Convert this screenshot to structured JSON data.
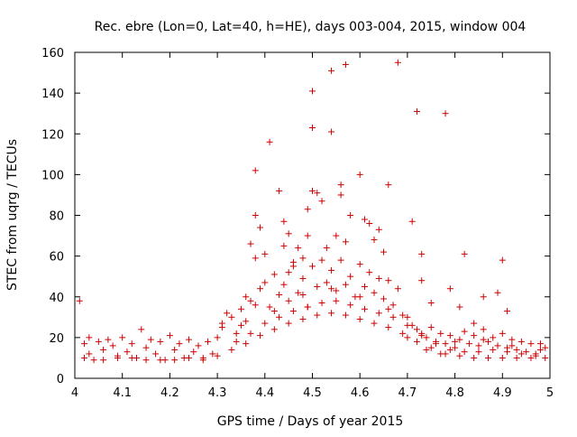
{
  "chart_data": {
    "type": "scatter",
    "title": "Rec. ebre (Lon=0, Lat=40, h=HE), days 003-004, 2015, window 004",
    "xlabel": "GPS time / Days of year 2015",
    "ylabel": "STEC from uqrg / TECUs",
    "xlim": [
      4.0,
      5.0
    ],
    "ylim": [
      0,
      160
    ],
    "x_ticks": [
      4,
      4.1,
      4.2,
      4.3,
      4.4,
      4.5,
      4.6,
      4.7,
      4.8,
      4.9,
      5
    ],
    "x_tick_labels": [
      "4",
      "4.1",
      "4.2",
      "4.3",
      "4.4",
      "4.5",
      "4.6",
      "4.7",
      "4.8",
      "4.9",
      "5"
    ],
    "y_ticks": [
      0,
      20,
      40,
      60,
      80,
      100,
      120,
      140,
      160
    ],
    "y_tick_labels": [
      "0",
      "20",
      "40",
      "60",
      "80",
      "100",
      "120",
      "140",
      "160"
    ],
    "grid": false,
    "marker": "+",
    "marker_color": "#cc0000",
    "series": [
      {
        "name": "STEC",
        "points": [
          [
            4.01,
            38
          ],
          [
            4.38,
            102
          ],
          [
            4.41,
            116
          ],
          [
            4.43,
            92
          ],
          [
            4.38,
            80
          ],
          [
            4.39,
            74
          ],
          [
            4.37,
            66
          ],
          [
            4.4,
            61
          ],
          [
            4.38,
            59
          ],
          [
            4.44,
            77
          ],
          [
            4.45,
            71
          ],
          [
            4.44,
            65
          ],
          [
            4.47,
            64
          ],
          [
            4.46,
            57
          ],
          [
            4.48,
            59
          ],
          [
            4.45,
            52
          ],
          [
            4.49,
            83
          ],
          [
            4.49,
            70
          ],
          [
            4.5,
            92
          ],
          [
            4.51,
            91
          ],
          [
            4.5,
            141
          ],
          [
            4.5,
            123
          ],
          [
            4.52,
            87
          ],
          [
            4.54,
            151
          ],
          [
            4.54,
            121
          ],
          [
            4.57,
            154
          ],
          [
            4.56,
            95
          ],
          [
            4.56,
            90
          ],
          [
            4.58,
            80
          ],
          [
            4.55,
            70
          ],
          [
            4.57,
            67
          ],
          [
            4.53,
            64
          ],
          [
            4.6,
            100
          ],
          [
            4.61,
            78
          ],
          [
            4.62,
            76
          ],
          [
            4.64,
            73
          ],
          [
            4.63,
            68
          ],
          [
            4.65,
            62
          ],
          [
            4.66,
            95
          ],
          [
            4.68,
            155
          ],
          [
            4.71,
            77
          ],
          [
            4.72,
            131
          ],
          [
            4.73,
            61
          ],
          [
            4.78,
            130
          ],
          [
            4.82,
            61
          ],
          [
            4.79,
            44
          ],
          [
            4.73,
            48
          ],
          [
            4.89,
            42
          ],
          [
            4.9,
            58
          ],
          [
            4.86,
            40
          ],
          [
            4.91,
            33
          ],
          [
            4.75,
            37
          ],
          [
            4.81,
            35
          ],
          [
            4.84,
            27
          ],
          [
            4.02,
            17
          ],
          [
            4.03,
            20
          ],
          [
            4.02,
            10
          ],
          [
            4.05,
            18
          ],
          [
            4.06,
            14
          ],
          [
            4.07,
            19
          ],
          [
            4.04,
            9
          ],
          [
            4.08,
            16
          ],
          [
            4.09,
            11
          ],
          [
            4.1,
            20
          ],
          [
            4.11,
            13
          ],
          [
            4.12,
            17
          ],
          [
            4.13,
            10
          ],
          [
            4.14,
            24
          ],
          [
            4.15,
            15
          ],
          [
            4.16,
            19
          ],
          [
            4.17,
            12
          ],
          [
            4.18,
            18
          ],
          [
            4.19,
            9
          ],
          [
            4.2,
            21
          ],
          [
            4.21,
            14
          ],
          [
            4.22,
            17
          ],
          [
            4.23,
            10
          ],
          [
            4.24,
            19
          ],
          [
            4.25,
            13
          ],
          [
            4.26,
            16
          ],
          [
            4.27,
            9
          ],
          [
            4.28,
            18
          ],
          [
            4.29,
            12
          ],
          [
            4.3,
            20
          ],
          [
            4.31,
            25
          ],
          [
            4.32,
            32
          ],
          [
            4.31,
            27
          ],
          [
            4.33,
            30
          ],
          [
            4.34,
            22
          ],
          [
            4.35,
            34
          ],
          [
            4.36,
            40
          ],
          [
            4.37,
            38
          ],
          [
            4.36,
            28
          ],
          [
            4.38,
            36
          ],
          [
            4.39,
            44
          ],
          [
            4.4,
            47
          ],
          [
            4.41,
            35
          ],
          [
            4.42,
            51
          ],
          [
            4.43,
            41
          ],
          [
            4.44,
            46
          ],
          [
            4.45,
            38
          ],
          [
            4.46,
            55
          ],
          [
            4.47,
            42
          ],
          [
            4.48,
            49
          ],
          [
            4.49,
            35
          ],
          [
            4.5,
            55
          ],
          [
            4.51,
            45
          ],
          [
            4.52,
            58
          ],
          [
            4.53,
            47
          ],
          [
            4.54,
            53
          ],
          [
            4.55,
            43
          ],
          [
            4.56,
            58
          ],
          [
            4.57,
            46
          ],
          [
            4.58,
            50
          ],
          [
            4.59,
            40
          ],
          [
            4.6,
            56
          ],
          [
            4.61,
            45
          ],
          [
            4.62,
            52
          ],
          [
            4.63,
            42
          ],
          [
            4.64,
            49
          ],
          [
            4.65,
            39
          ],
          [
            4.66,
            48
          ],
          [
            4.67,
            36
          ],
          [
            4.68,
            44
          ],
          [
            4.69,
            31
          ],
          [
            4.7,
            30
          ],
          [
            4.71,
            26
          ],
          [
            4.72,
            24
          ],
          [
            4.73,
            22
          ],
          [
            4.74,
            20
          ],
          [
            4.75,
            25
          ],
          [
            4.76,
            18
          ],
          [
            4.77,
            22
          ],
          [
            4.78,
            17
          ],
          [
            4.79,
            21
          ],
          [
            4.8,
            15
          ],
          [
            4.81,
            19
          ],
          [
            4.82,
            23
          ],
          [
            4.83,
            17
          ],
          [
            4.84,
            21
          ],
          [
            4.85,
            16
          ],
          [
            4.86,
            24
          ],
          [
            4.87,
            18
          ],
          [
            4.88,
            20
          ],
          [
            4.89,
            16
          ],
          [
            4.9,
            22
          ],
          [
            4.91,
            15
          ],
          [
            4.92,
            19
          ],
          [
            4.93,
            14
          ],
          [
            4.94,
            18
          ],
          [
            4.95,
            13
          ],
          [
            4.96,
            17
          ],
          [
            4.97,
            12
          ],
          [
            4.98,
            17
          ],
          [
            4.99,
            15
          ],
          [
            4.03,
            12
          ],
          [
            4.06,
            9
          ],
          [
            4.09,
            10
          ],
          [
            4.12,
            10
          ],
          [
            4.15,
            9
          ],
          [
            4.18,
            9
          ],
          [
            4.21,
            9
          ],
          [
            4.24,
            10
          ],
          [
            4.27,
            10
          ],
          [
            4.3,
            11
          ],
          [
            4.33,
            14
          ],
          [
            4.36,
            17
          ],
          [
            4.39,
            21
          ],
          [
            4.42,
            24
          ],
          [
            4.45,
            27
          ],
          [
            4.48,
            29
          ],
          [
            4.51,
            31
          ],
          [
            4.54,
            32
          ],
          [
            4.57,
            31
          ],
          [
            4.6,
            29
          ],
          [
            4.63,
            27
          ],
          [
            4.66,
            25
          ],
          [
            4.69,
            22
          ],
          [
            4.72,
            18
          ],
          [
            4.75,
            15
          ],
          [
            4.78,
            12
          ],
          [
            4.81,
            11
          ],
          [
            4.84,
            10
          ],
          [
            4.87,
            10
          ],
          [
            4.9,
            10
          ],
          [
            4.93,
            10
          ],
          [
            4.96,
            10
          ],
          [
            4.99,
            10
          ],
          [
            4.34,
            18
          ],
          [
            4.37,
            22
          ],
          [
            4.4,
            27
          ],
          [
            4.43,
            30
          ],
          [
            4.46,
            33
          ],
          [
            4.49,
            35
          ],
          [
            4.52,
            37
          ],
          [
            4.55,
            38
          ],
          [
            4.58,
            36
          ],
          [
            4.61,
            34
          ],
          [
            4.64,
            32
          ],
          [
            4.67,
            30
          ],
          [
            4.7,
            26
          ],
          [
            4.73,
            21
          ],
          [
            4.76,
            17
          ],
          [
            4.79,
            14
          ],
          [
            4.82,
            13
          ],
          [
            4.85,
            13
          ],
          [
            4.88,
            14
          ],
          [
            4.91,
            13
          ],
          [
            4.94,
            12
          ],
          [
            4.97,
            11
          ],
          [
            4.35,
            26
          ],
          [
            4.42,
            33
          ],
          [
            4.48,
            41
          ],
          [
            4.54,
            44
          ],
          [
            4.6,
            40
          ],
          [
            4.66,
            34
          ],
          [
            4.7,
            20
          ],
          [
            4.74,
            14
          ],
          [
            4.77,
            12
          ],
          [
            4.8,
            18
          ],
          [
            4.86,
            19
          ],
          [
            4.92,
            16
          ],
          [
            4.98,
            14
          ]
        ]
      }
    ]
  }
}
